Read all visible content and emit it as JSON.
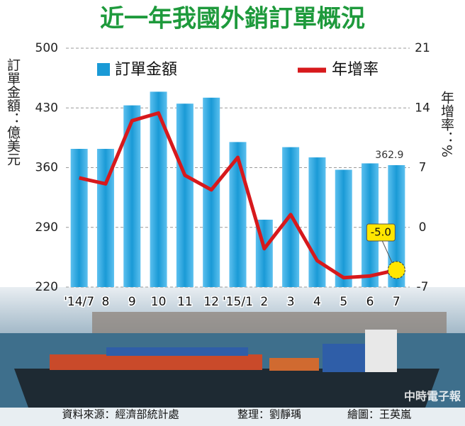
{
  "chart_data": {
    "type": "bar-line",
    "title": "近一年我國外銷訂單概況",
    "y_label": "訂單金額：億美元",
    "y2_label": "年增率：%",
    "categories": [
      "'14/7",
      "8",
      "9",
      "10",
      "11",
      "12",
      "'15/1",
      "2",
      "3",
      "4",
      "5",
      "6",
      "7"
    ],
    "series": [
      {
        "name": "訂單金額",
        "color": "#1a9ad6",
        "type": "bar",
        "values": [
          382,
          382,
          433,
          449,
          435,
          442,
          390,
          299,
          384,
          372,
          357.5,
          365,
          362.9
        ],
        "value_labels": [
          null,
          null,
          null,
          null,
          null,
          null,
          null,
          null,
          null,
          null,
          null,
          null,
          "362.9"
        ]
      },
      {
        "name": "年增率",
        "color": "#d7191c",
        "type": "line",
        "axis": "y2",
        "values": [
          5.8,
          5.1,
          12.5,
          13.4,
          6.1,
          4.4,
          8.2,
          -2.5,
          1.5,
          -3.9,
          -5.9,
          -5.7,
          -5.0
        ],
        "value_labels": [
          null,
          null,
          null,
          null,
          null,
          null,
          null,
          null,
          null,
          null,
          null,
          null,
          "-5.0"
        ]
      }
    ],
    "ylim": [
      220,
      500
    ],
    "yticks": [
      220,
      290,
      360,
      430,
      500
    ],
    "y2lim": [
      -7,
      21
    ],
    "y2ticks": [
      -7,
      0,
      7,
      14,
      21
    ],
    "grid": true,
    "credits": [
      "資料來源：經濟部統計處",
      "整理：劉靜瑀",
      "繪圖：王英嵐"
    ],
    "watermark": "中時電子報"
  }
}
